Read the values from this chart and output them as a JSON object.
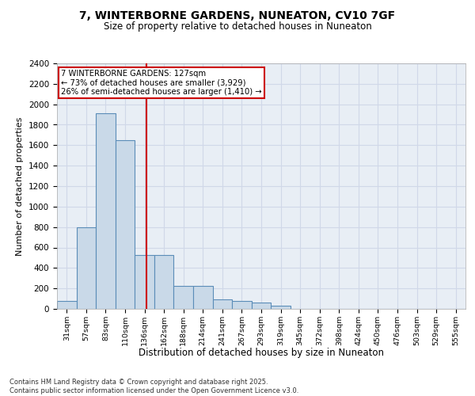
{
  "title_line1": "7, WINTERBORNE GARDENS, NUNEATON, CV10 7GF",
  "title_line2": "Size of property relative to detached houses in Nuneaton",
  "xlabel": "Distribution of detached houses by size in Nuneaton",
  "ylabel": "Number of detached properties",
  "categories": [
    "31sqm",
    "57sqm",
    "83sqm",
    "110sqm",
    "136sqm",
    "162sqm",
    "188sqm",
    "214sqm",
    "241sqm",
    "267sqm",
    "293sqm",
    "319sqm",
    "345sqm",
    "372sqm",
    "398sqm",
    "424sqm",
    "450sqm",
    "476sqm",
    "503sqm",
    "529sqm",
    "555sqm"
  ],
  "values": [
    80,
    800,
    1910,
    1650,
    530,
    530,
    225,
    225,
    90,
    75,
    65,
    30,
    0,
    0,
    0,
    0,
    0,
    0,
    0,
    0,
    0
  ],
  "bar_color": "#c9d9e8",
  "bar_edge_color": "#5b8db8",
  "bar_edge_width": 0.8,
  "ylim": [
    0,
    2400
  ],
  "yticks": [
    0,
    200,
    400,
    600,
    800,
    1000,
    1200,
    1400,
    1600,
    1800,
    2000,
    2200,
    2400
  ],
  "grid_color": "#d0d8e8",
  "bg_color": "#e8eef5",
  "red_line_x": 4.08,
  "annotation_text": "7 WINTERBORNE GARDENS: 127sqm\n← 73% of detached houses are smaller (3,929)\n26% of semi-detached houses are larger (1,410) →",
  "annotation_box_color": "#ffffff",
  "annotation_border_color": "#cc0000",
  "footnote": "Contains HM Land Registry data © Crown copyright and database right 2025.\nContains public sector information licensed under the Open Government Licence v3.0."
}
